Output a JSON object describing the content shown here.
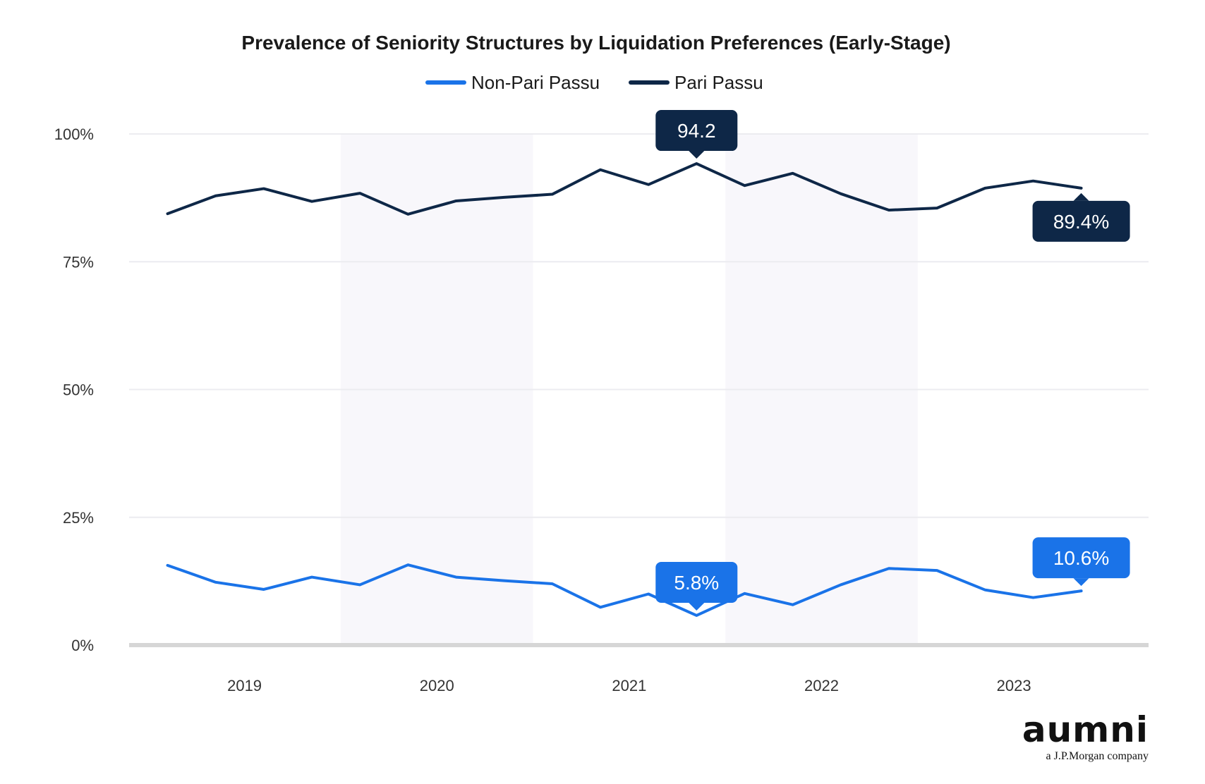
{
  "chart_data": {
    "type": "line",
    "title": "Prevalence of Seniority Structures by Liquidation Preferences (Early-Stage)",
    "xlabel": "",
    "ylabel": "",
    "ylim": [
      0,
      100
    ],
    "yticks": [
      0,
      25,
      50,
      75,
      100
    ],
    "ytick_labels": [
      "0%",
      "25%",
      "50%",
      "75%",
      "100%"
    ],
    "xticks": [
      2019,
      2020,
      2021,
      2022,
      2023
    ],
    "xlim": [
      2018.4,
      2023.7
    ],
    "grid": true,
    "legend": "top-center",
    "x": [
      2018.6,
      2018.85,
      2019.1,
      2019.35,
      2019.6,
      2019.85,
      2020.1,
      2020.35,
      2020.6,
      2020.85,
      2021.1,
      2021.35,
      2021.6,
      2021.85,
      2022.1,
      2022.35,
      2022.6,
      2022.85,
      2023.1,
      2023.35
    ],
    "series": [
      {
        "name": "Non-Pari Passu",
        "color": "#1a73e8",
        "values": [
          15.6,
          12.3,
          10.9,
          13.3,
          11.8,
          15.7,
          13.3,
          12.6,
          12.0,
          7.4,
          10.0,
          5.8,
          10.1,
          7.9,
          11.8,
          15.0,
          14.6,
          10.8,
          9.3,
          10.6
        ]
      },
      {
        "name": "Pari Passu",
        "color": "#0e2747",
        "values": [
          84.4,
          87.9,
          89.3,
          86.8,
          88.4,
          84.3,
          86.9,
          87.6,
          88.2,
          93.0,
          90.1,
          94.2,
          89.9,
          92.3,
          88.3,
          85.1,
          85.5,
          89.4,
          90.8,
          89.4
        ]
      }
    ],
    "annotations": [
      {
        "series": 1,
        "index": 11,
        "label": "94.2",
        "position": "above"
      },
      {
        "series": 1,
        "index": 19,
        "label": "89.4%",
        "position": "below"
      },
      {
        "series": 0,
        "index": 11,
        "label": "5.8%",
        "position": "above"
      },
      {
        "series": 0,
        "index": 19,
        "label": "10.6%",
        "position": "above"
      }
    ],
    "shaded_bands": [
      [
        2019.5,
        2020.5
      ],
      [
        2021.5,
        2022.5
      ]
    ]
  },
  "brand": {
    "name": "aumni",
    "tagline": "a J.P.Morgan company"
  }
}
